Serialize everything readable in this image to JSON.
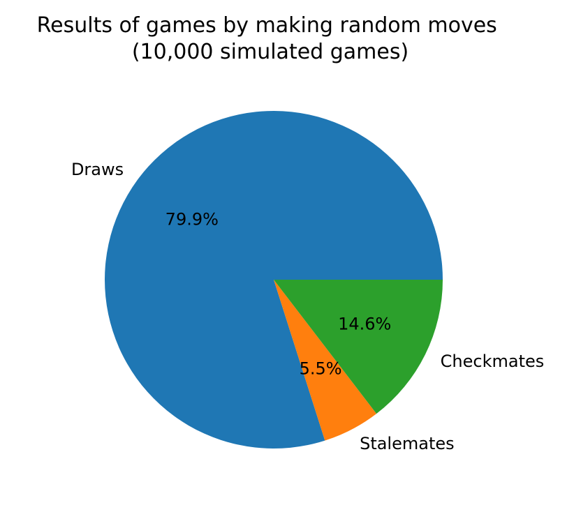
{
  "chart_data": {
    "type": "pie",
    "title": "Results of games by making random moves",
    "subtitle": "(10,000 simulated games)",
    "slices": [
      {
        "label": "Draws",
        "value": 79.9,
        "pct_label": "79.9%",
        "color": "#1f77b4"
      },
      {
        "label": "Stalemates",
        "value": 5.5,
        "pct_label": "5.5%",
        "color": "#ff7f0e"
      },
      {
        "label": "Checkmates",
        "value": 14.6,
        "pct_label": "14.6%",
        "color": "#2ca02c"
      }
    ],
    "start_angle_deg": 0,
    "direction": "counterclockwise"
  }
}
